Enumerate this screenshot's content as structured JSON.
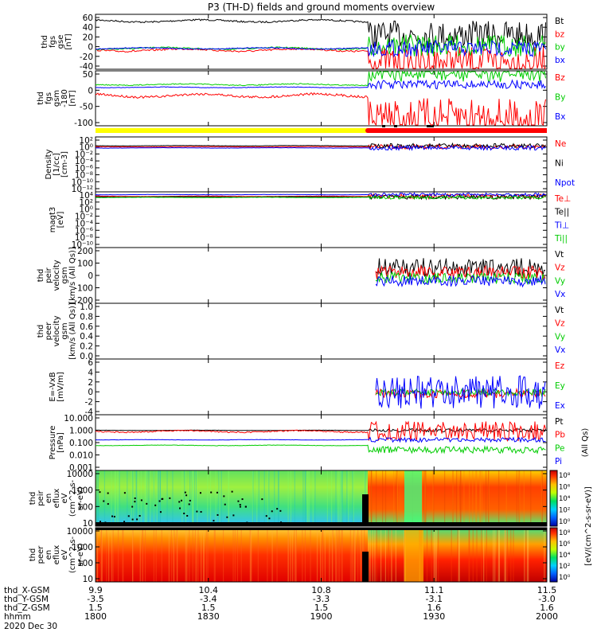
{
  "chart_data": {
    "type": "line",
    "title": "P3 (TH-D) fields and ground moments overview",
    "x_ticks": [
      "1800",
      "1830",
      "1900",
      "1930",
      "2000"
    ],
    "date_label": "2020 Dec 30",
    "orbit_rows": [
      {
        "label": "thd_X-GSM",
        "values": [
          "9.9",
          "10.4",
          "10.8",
          "11.1",
          "11.5"
        ]
      },
      {
        "label": "thd_Y-GSM",
        "values": [
          "-3.5",
          "-3.4",
          "-3.3",
          "-3.1",
          "-3.0"
        ]
      },
      {
        "label": "thd_Z-GSM",
        "values": [
          "1.5",
          "1.5",
          "1.5",
          "1.6",
          "1.6"
        ]
      },
      {
        "label": "hhmm",
        "values": [
          "",
          "",
          "",
          "",
          ""
        ]
      }
    ],
    "panels": [
      {
        "id": "fgs-gse",
        "ylabel": [
          "thd",
          "fgs",
          "gse",
          "[nT]"
        ],
        "yticks": [
          "60",
          "40",
          "20",
          "0",
          "-20",
          "-40"
        ],
        "legend": [
          {
            "name": "Bt",
            "color": "#000000"
          },
          {
            "name": "bz",
            "color": "#ff0000"
          },
          {
            "name": "by",
            "color": "#00cc00"
          },
          {
            "name": "bx",
            "color": "#0000ff"
          }
        ]
      },
      {
        "id": "fgs-gsm",
        "ylabel": [
          "thd",
          "fgs",
          "gsm",
          "-180",
          "[nT]"
        ],
        "yticks": [
          "50",
          "0",
          "-50",
          "-100"
        ],
        "legend": [
          {
            "name": "Bz",
            "color": "#ff0000"
          },
          {
            "name": "By",
            "color": "#00cc00"
          },
          {
            "name": "Bx",
            "color": "#0000ff"
          }
        ]
      },
      {
        "id": "density",
        "ylabel": [
          "Density",
          "[1/cc]",
          "[cm-3]"
        ],
        "yticks": [
          "10²",
          "10⁰",
          "10⁻²",
          "10⁻⁴",
          "10⁻⁶",
          "10⁻⁸",
          "10⁻¹⁰",
          "10⁻¹²"
        ],
        "legend": [
          {
            "name": "Ne",
            "color": "#ff0000"
          },
          {
            "name": "Ni",
            "color": "#000000"
          },
          {
            "name": "Npot",
            "color": "#0000ff"
          }
        ]
      },
      {
        "id": "temperature",
        "ylabel": [
          "magt3",
          "[eV]"
        ],
        "yticks": [
          "10⁴",
          "10²",
          "10⁰",
          "10⁻²",
          "10⁻⁴",
          "10⁻⁶",
          "10⁻⁸",
          "10⁻¹⁰"
        ],
        "legend": [
          {
            "name": "Te⊥",
            "color": "#ff0000"
          },
          {
            "name": "Te||",
            "color": "#000000"
          },
          {
            "name": "Ti⊥",
            "color": "#0000ff"
          },
          {
            "name": "Ti||",
            "color": "#00cc00"
          }
        ]
      },
      {
        "id": "peir-velocity",
        "ylabel": [
          "thd",
          "peir",
          "velocity",
          "gsm",
          "[km/s (All Qs)]"
        ],
        "yticks": [
          "200",
          "100",
          "0",
          "-100",
          "-200"
        ],
        "legend": [
          {
            "name": "Vt",
            "color": "#000000"
          },
          {
            "name": "Vz",
            "color": "#ff0000"
          },
          {
            "name": "Vy",
            "color": "#00cc00"
          },
          {
            "name": "Vx",
            "color": "#0000ff"
          }
        ]
      },
      {
        "id": "peer-velocity",
        "ylabel": [
          "thd",
          "peer",
          "velocity",
          "gsm",
          "[km/s (All Qs)]"
        ],
        "yticks": [
          "1.0",
          "0.8",
          "0.6",
          "0.4",
          "0.2",
          "0.0"
        ],
        "legend": [
          {
            "name": "Vt",
            "color": "#000000"
          },
          {
            "name": "Vz",
            "color": "#ff0000"
          },
          {
            "name": "Vy",
            "color": "#00cc00"
          },
          {
            "name": "Vx",
            "color": "#0000ff"
          }
        ]
      },
      {
        "id": "efield",
        "ylabel": [
          "E=-VxB",
          "[mV/m]"
        ],
        "yticks": [
          "6",
          "4",
          "2",
          "0",
          "-2",
          "-4"
        ],
        "legend": [
          {
            "name": "Ez",
            "color": "#ff0000"
          },
          {
            "name": "Ey",
            "color": "#00cc00"
          },
          {
            "name": "Ex",
            "color": "#0000ff"
          }
        ]
      },
      {
        "id": "pressure",
        "ylabel": [
          "Pressure",
          "[nPa]"
        ],
        "yticks": [
          "10.000",
          "1.000",
          "0.100",
          "0.010",
          "0.001"
        ],
        "legend": [
          {
            "name": "Pt",
            "color": "#000000"
          },
          {
            "name": "Pb",
            "color": "#ff0000"
          },
          {
            "name": "Pe",
            "color": "#00cc00"
          },
          {
            "name": "Pi",
            "color": "#0000ff"
          }
        ],
        "side_note": "(All Qs)"
      },
      {
        "id": "peir-spec",
        "ylabel": [
          "thd",
          "peir",
          "en",
          "eflux",
          "eV",
          "(cm^2-s-",
          "sr-eV)"
        ],
        "yticks": [
          "10000",
          "1000",
          "100",
          "10"
        ]
      },
      {
        "id": "peer-spec",
        "ylabel": [
          "thd",
          "peer",
          "en",
          "eflux",
          "eV",
          "(cm^2-s-",
          "sr-eV)"
        ],
        "yticks": [
          "10000",
          "1000",
          "100",
          "10"
        ]
      }
    ],
    "colorbar": {
      "label": "[eV/(cm^2-s-sr-eV)]",
      "upper_ticks": [
        "10⁸",
        "10⁶",
        "10⁴",
        "10²",
        "10⁰"
      ],
      "lower_ticks": [
        "10⁸",
        "10⁶",
        "10⁴",
        "10²",
        "10⁰"
      ]
    }
  }
}
